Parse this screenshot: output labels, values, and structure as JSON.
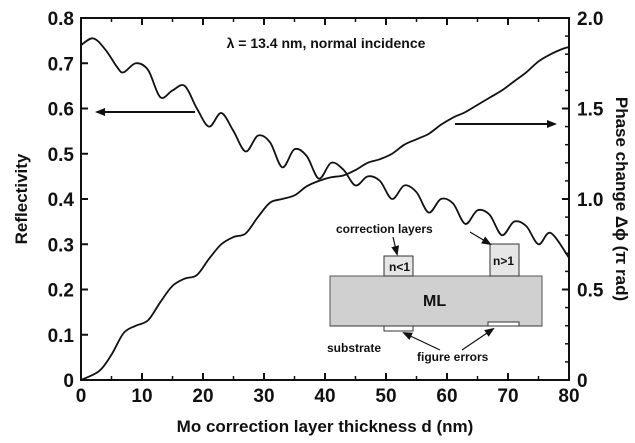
{
  "chart_data": {
    "type": "line",
    "xlabel": "Mo correction layer thickness d (nm)",
    "ylabel_left": "Reflectivity",
    "ylabel_right": "Phase change Δϕ (π rad)",
    "annotation": "λ = 13.4 nm, normal incidence",
    "xlim": [
      0,
      80
    ],
    "ylim_left": [
      0,
      0.8
    ],
    "ylim_right": [
      0,
      2.0
    ],
    "x_ticks": [
      0,
      10,
      20,
      30,
      40,
      50,
      60,
      70,
      80
    ],
    "y_ticks_left": [
      0,
      0.1,
      0.2,
      0.3,
      0.4,
      0.5,
      0.6,
      0.7,
      0.8
    ],
    "y_ticks_right": [
      0,
      0.5,
      1.0,
      1.5,
      2.0
    ],
    "x_tick_labels": [
      "0",
      "10",
      "20",
      "30",
      "40",
      "50",
      "60",
      "70",
      "80"
    ],
    "y_tick_labels_left": [
      "0",
      "0.1",
      "0.2",
      "0.3",
      "0.4",
      "0.5",
      "0.6",
      "0.7",
      "0.8"
    ],
    "y_tick_labels_right": [
      "0",
      "0.5",
      "1.0",
      "1.5",
      "2.0"
    ],
    "series": [
      {
        "axis": "left",
        "x": [
          0,
          2,
          4,
          6,
          7,
          9,
          11,
          13,
          15,
          17,
          19,
          21,
          23,
          25,
          27,
          29,
          31,
          33,
          35,
          37,
          39,
          41,
          43,
          45,
          47,
          49,
          51,
          53,
          55,
          57,
          59,
          61,
          63,
          65,
          67,
          69,
          71,
          73,
          75,
          77,
          80
        ],
        "values": [
          0.74,
          0.755,
          0.73,
          0.69,
          0.68,
          0.7,
          0.685,
          0.625,
          0.64,
          0.65,
          0.6,
          0.56,
          0.59,
          0.55,
          0.505,
          0.54,
          0.525,
          0.47,
          0.51,
          0.495,
          0.445,
          0.48,
          0.465,
          0.43,
          0.45,
          0.44,
          0.4,
          0.43,
          0.415,
          0.37,
          0.4,
          0.39,
          0.345,
          0.375,
          0.365,
          0.32,
          0.35,
          0.34,
          0.3,
          0.325,
          0.27
        ]
      },
      {
        "axis": "right",
        "x": [
          0,
          3,
          5,
          7,
          9,
          11,
          13,
          15,
          17,
          19,
          21,
          23,
          25,
          27,
          29,
          31,
          33,
          35,
          37,
          39,
          41,
          43,
          45,
          47,
          49,
          51,
          53,
          55,
          57,
          59,
          61,
          63,
          65,
          67,
          69,
          71,
          73,
          75,
          77,
          79,
          80
        ],
        "values": [
          0.0,
          0.05,
          0.14,
          0.26,
          0.3,
          0.33,
          0.43,
          0.52,
          0.56,
          0.58,
          0.67,
          0.75,
          0.79,
          0.81,
          0.9,
          0.98,
          1.0,
          1.02,
          1.07,
          1.1,
          1.12,
          1.13,
          1.16,
          1.2,
          1.22,
          1.25,
          1.3,
          1.33,
          1.36,
          1.41,
          1.45,
          1.48,
          1.52,
          1.56,
          1.6,
          1.65,
          1.7,
          1.76,
          1.8,
          1.83,
          1.84
        ]
      }
    ],
    "inset": {
      "label_correction": "correction layers",
      "label_n_less": "n<1",
      "label_n_greater": "n>1",
      "label_ml": "ML",
      "label_substrate": "substrate",
      "label_figure_errors": "figure errors"
    },
    "colors": {
      "line": "#111111",
      "inset_fill": "#d0d0d0",
      "layer_fill": "#e6e6e6"
    }
  }
}
